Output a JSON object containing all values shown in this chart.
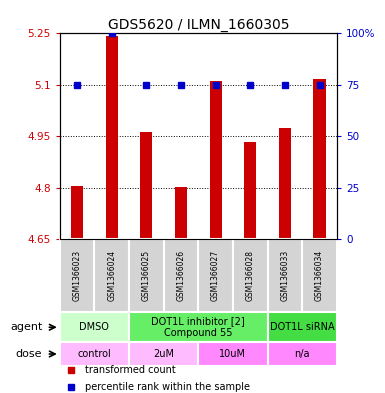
{
  "title": "GDS5620 / ILMN_1660305",
  "samples": [
    "GSM1366023",
    "GSM1366024",
    "GSM1366025",
    "GSM1366026",
    "GSM1366027",
    "GSM1366028",
    "GSM1366033",
    "GSM1366034"
  ],
  "bar_values": [
    4.806,
    5.243,
    4.963,
    4.801,
    5.112,
    4.932,
    4.973,
    5.118
  ],
  "percentile_values": [
    75,
    100,
    75,
    75,
    75,
    75,
    75,
    75
  ],
  "bar_bottom": 4.65,
  "ylim_left": [
    4.65,
    5.25
  ],
  "ylim_right": [
    0,
    100
  ],
  "yticks_left": [
    4.65,
    4.8,
    4.95,
    5.1,
    5.25
  ],
  "ytick_labels_left": [
    "4.65",
    "4.8",
    "4.95",
    "5.1",
    "5.25"
  ],
  "yticks_right": [
    0,
    25,
    50,
    75,
    100
  ],
  "ytick_labels_right": [
    "0",
    "25",
    "50",
    "75",
    "100%"
  ],
  "bar_color": "#cc0000",
  "percentile_color": "#0000cc",
  "left_yaxis_color": "#cc0000",
  "right_yaxis_color": "#0000cc",
  "agent_groups": [
    {
      "label": "DMSO",
      "start": 0,
      "end": 2,
      "color": "#ccffcc"
    },
    {
      "label": "DOT1L inhibitor [2]\nCompound 55",
      "start": 2,
      "end": 6,
      "color": "#66ee66"
    },
    {
      "label": "DOT1L siRNA",
      "start": 6,
      "end": 8,
      "color": "#44dd44"
    }
  ],
  "dose_groups": [
    {
      "label": "control",
      "start": 0,
      "end": 2,
      "color": "#ffbbff"
    },
    {
      "label": "2uM",
      "start": 2,
      "end": 4,
      "color": "#ffbbff"
    },
    {
      "label": "10uM",
      "start": 4,
      "end": 6,
      "color": "#ff88ff"
    },
    {
      "label": "n/a",
      "start": 6,
      "end": 8,
      "color": "#ff88ff"
    }
  ],
  "legend_items": [
    {
      "color": "#cc0000",
      "label": "transformed count"
    },
    {
      "color": "#0000cc",
      "label": "percentile rank within the sample"
    }
  ],
  "sample_bg": "#d4d4d4",
  "background_color": "#ffffff",
  "plot_bg_color": "#ffffff",
  "cell_border_color": "#ffffff",
  "agent_label_fontsize": 7,
  "dose_label_fontsize": 7,
  "sample_fontsize": 5.5,
  "legend_fontsize": 7,
  "title_fontsize": 10,
  "bar_width": 0.35
}
